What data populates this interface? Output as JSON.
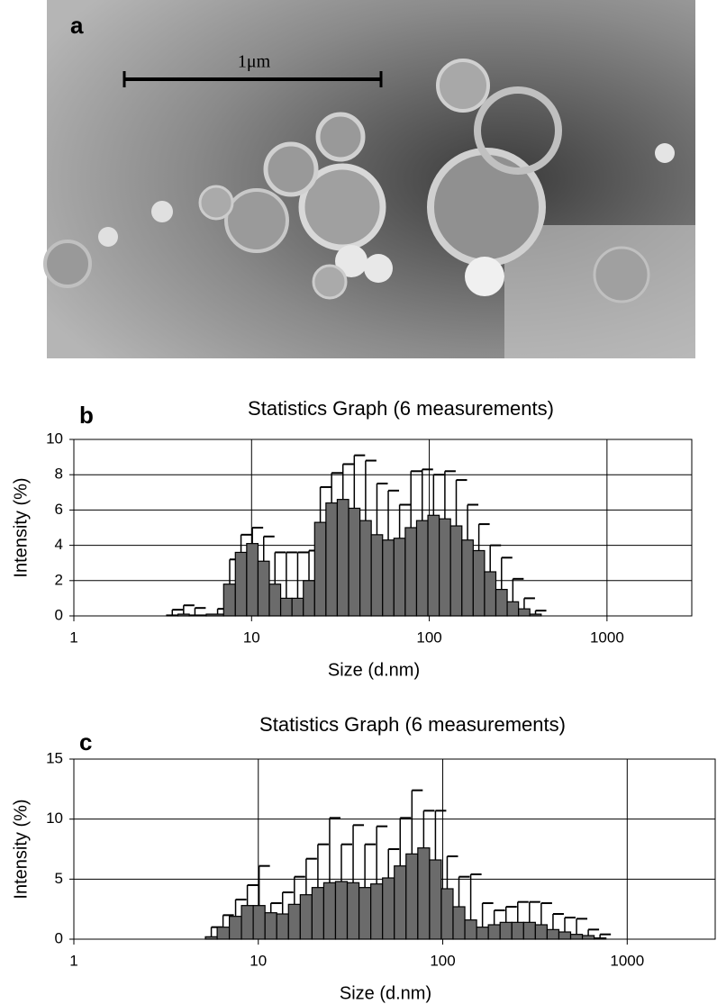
{
  "figure": {
    "panel_a": {
      "label": "a",
      "scale_bar": "1μm"
    }
  },
  "chart_data": [
    {
      "type": "bar",
      "panel_label": "b",
      "title": "Statistics Graph (6 measurements)",
      "x_label": "Size (d.nm)",
      "y_label": "Intensity (%)",
      "log_x": true,
      "grid": true,
      "color": "#6b6b6b",
      "xlim": [
        1,
        3000
      ],
      "xticks": [
        1,
        10,
        100,
        1000
      ],
      "ylim": [
        0,
        10
      ],
      "yticks": [
        0,
        2,
        4,
        6,
        8,
        10
      ],
      "x": [
        3.58,
        4.145,
        4.801,
        6.439,
        7.531,
        8.721,
        10.1,
        11.7,
        13.54,
        15.69,
        18.17,
        21.04,
        24.36,
        28.21,
        32.67,
        37.84,
        43.82,
        50.75,
        58.77,
        68.06,
        78.82,
        91.28,
        105.7,
        122.4,
        141.8,
        164.2,
        190.1,
        220.2,
        255.0,
        295.3,
        342.0,
        396.1
      ],
      "values": [
        0.05,
        0.1,
        0.05,
        0.1,
        1.8,
        3.6,
        4.1,
        3.1,
        1.8,
        1.0,
        1.0,
        2.0,
        5.3,
        6.4,
        6.6,
        6.1,
        5.4,
        4.6,
        4.3,
        4.4,
        5.0,
        5.4,
        5.7,
        5.5,
        5.1,
        4.3,
        3.7,
        2.5,
        1.5,
        0.8,
        0.4,
        0.1
      ],
      "errors": [
        0.3,
        0.5,
        0.4,
        0.3,
        1.4,
        1.0,
        0.9,
        1.4,
        1.8,
        2.6,
        2.6,
        1.7,
        2.0,
        1.7,
        2.0,
        3.0,
        3.4,
        2.9,
        2.8,
        1.9,
        3.2,
        2.9,
        2.3,
        2.7,
        2.6,
        2.0,
        1.5,
        1.5,
        1.8,
        1.3,
        0.6,
        0.2
      ]
    },
    {
      "type": "bar",
      "panel_label": "c",
      "title": "Statistics Graph (6 measurements)",
      "x_label": "Size (d.nm)",
      "y_label": "Intensity (%)",
      "log_x": true,
      "grid": true,
      "color": "#6b6b6b",
      "xlim": [
        1,
        3000
      ],
      "xticks": [
        1,
        10,
        100,
        1000
      ],
      "ylim": [
        0,
        15
      ],
      "yticks": [
        0,
        5,
        10,
        15
      ],
      "x": [
        5.56,
        6.439,
        7.531,
        8.721,
        10.1,
        11.7,
        13.54,
        15.69,
        18.17,
        21.04,
        24.36,
        28.21,
        32.67,
        37.84,
        43.82,
        50.75,
        58.77,
        68.06,
        78.82,
        91.28,
        105.7,
        122.4,
        141.8,
        164.2,
        190.1,
        220.2,
        255.0,
        295.3,
        342.0,
        396.1,
        458.7,
        531.2,
        615.1,
        712.4
      ],
      "values": [
        0.2,
        1.0,
        1.9,
        2.8,
        2.8,
        2.2,
        2.1,
        2.9,
        3.7,
        4.3,
        4.7,
        4.8,
        4.7,
        4.3,
        4.6,
        5.1,
        6.1,
        7.1,
        7.6,
        6.6,
        4.2,
        2.7,
        1.6,
        1.0,
        1.2,
        1.4,
        1.4,
        1.4,
        1.2,
        0.8,
        0.6,
        0.4,
        0.3,
        0.1
      ],
      "errors": [
        0.8,
        1.0,
        1.4,
        1.7,
        3.3,
        0.8,
        1.8,
        2.3,
        3.0,
        3.6,
        5.4,
        3.1,
        4.8,
        3.6,
        4.8,
        2.4,
        4.0,
        5.3,
        3.1,
        4.1,
        2.7,
        2.5,
        3.8,
        2.0,
        1.2,
        1.3,
        1.7,
        1.7,
        1.8,
        1.3,
        1.2,
        1.3,
        0.5,
        0.3
      ]
    }
  ]
}
